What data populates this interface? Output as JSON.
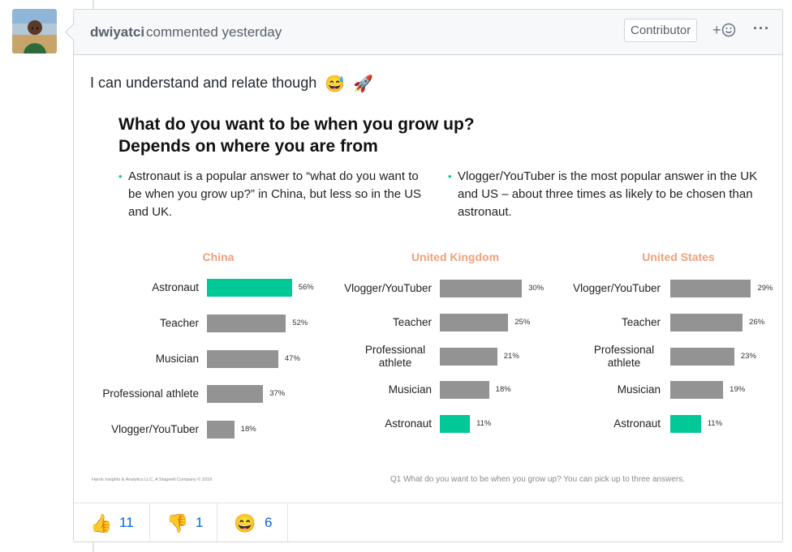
{
  "comment": {
    "author": "dwiyatci",
    "action": "commented yesterday",
    "badge": "Contributor",
    "add_reaction_label": "+☺",
    "more_label": "···",
    "body_text": "I can understand and relate though",
    "body_emojis": [
      "😅",
      "🚀"
    ]
  },
  "slide": {
    "title": "What do you want to be when you grow up? Depends on where you are from",
    "bullets": [
      "Astronaut is a popular answer to “what do you want to be when you grow up?” in China, but less so in the US and UK.",
      "Vlogger/YouTuber is the most popular answer in the UK and US – about three times as likely to be chosen than astronaut."
    ],
    "footnote_left": "Harris Insights & Analytics LLC, A Stagwell Company © 2019",
    "footnote_right": "Q1  What do you want to be when you grow up? You can pick up to three answers."
  },
  "chart_data": [
    {
      "type": "bar",
      "orientation": "horizontal",
      "title": "China",
      "categories": [
        "Astronaut",
        "Teacher",
        "Musician",
        "Professional athlete",
        "Vlogger/YouTuber"
      ],
      "values": [
        56,
        52,
        47,
        37,
        18
      ],
      "value_labels": [
        "56%",
        "52%",
        "47%",
        "37%",
        "18%"
      ],
      "highlight": "Astronaut"
    },
    {
      "type": "bar",
      "orientation": "horizontal",
      "title": "United Kingdom",
      "categories": [
        "Vlogger/YouTuber",
        "Teacher",
        "Professional athlete",
        "Musician",
        "Astronaut"
      ],
      "values": [
        30,
        25,
        21,
        18,
        11
      ],
      "value_labels": [
        "30%",
        "25%",
        "21%",
        "18%",
        "11%"
      ],
      "highlight": "Astronaut"
    },
    {
      "type": "bar",
      "orientation": "horizontal",
      "title": "United States",
      "categories": [
        "Vlogger/YouTuber",
        "Teacher",
        "Professional athlete",
        "Musician",
        "Astronaut"
      ],
      "values": [
        29,
        26,
        23,
        19,
        11
      ],
      "value_labels": [
        "29%",
        "26%",
        "23%",
        "19%",
        "11%"
      ],
      "highlight": "Astronaut"
    }
  ],
  "colors": {
    "bar_default": "#939393",
    "bar_highlight": "#00c896",
    "chart_title": "#f0a07a",
    "link_blue": "#0366d6"
  },
  "reactions": [
    {
      "icon": "thumbs-up-icon",
      "glyph": "👍",
      "count": "11"
    },
    {
      "icon": "thumbs-down-icon",
      "glyph": "👎",
      "count": "1"
    },
    {
      "icon": "laugh-icon",
      "glyph": "😄",
      "count": "6"
    }
  ]
}
